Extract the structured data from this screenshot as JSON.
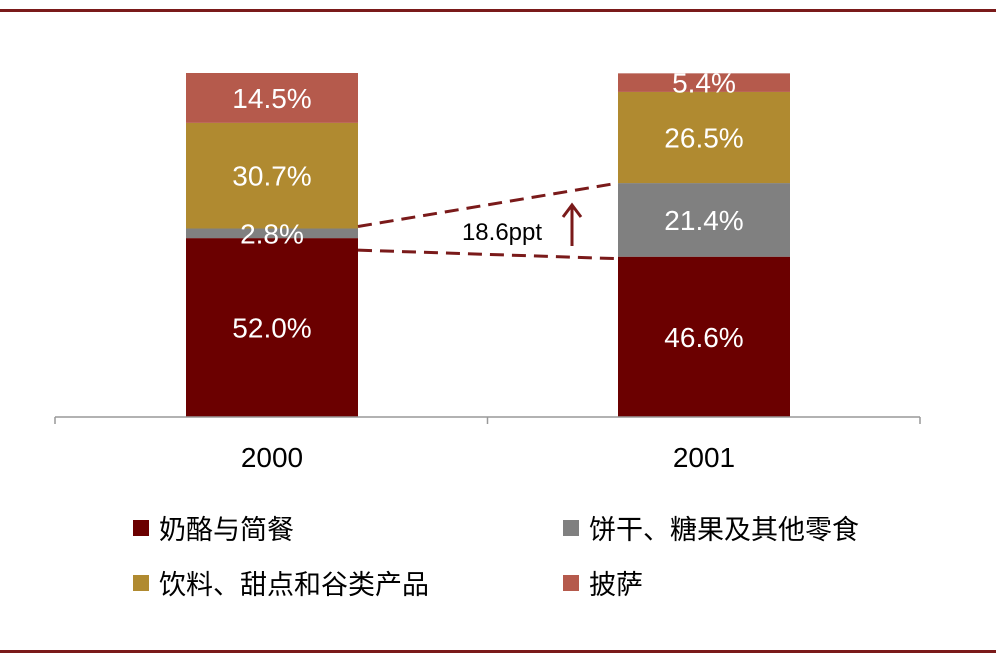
{
  "chart_data": {
    "type": "bar",
    "stacked": true,
    "categories": [
      "2000",
      "2001"
    ],
    "series": [
      {
        "name": "奶酪与简餐",
        "values": [
          52.0,
          46.6
        ],
        "labels": [
          "52.0%",
          "46.6%"
        ],
        "color": "#6b0000"
      },
      {
        "name": "饼干、糖果及其他零食",
        "values": [
          2.8,
          21.4
        ],
        "labels": [
          "2.8%",
          "21.4%"
        ],
        "color": "#808080"
      },
      {
        "name": "饮料、甜点和谷类产品",
        "values": [
          30.7,
          26.5
        ],
        "labels": [
          "30.7%",
          "26.5%"
        ],
        "color": "#b08a30"
      },
      {
        "name": "披萨",
        "values": [
          14.5,
          5.4
        ],
        "labels": [
          "14.5%",
          "5.4%"
        ],
        "color": "#b55a4c"
      }
    ],
    "ylim": [
      0,
      100
    ],
    "annotation": {
      "text": "18.6ppt",
      "direction": "up",
      "color": "#7a1a1a"
    },
    "legend_position": "bottom"
  }
}
